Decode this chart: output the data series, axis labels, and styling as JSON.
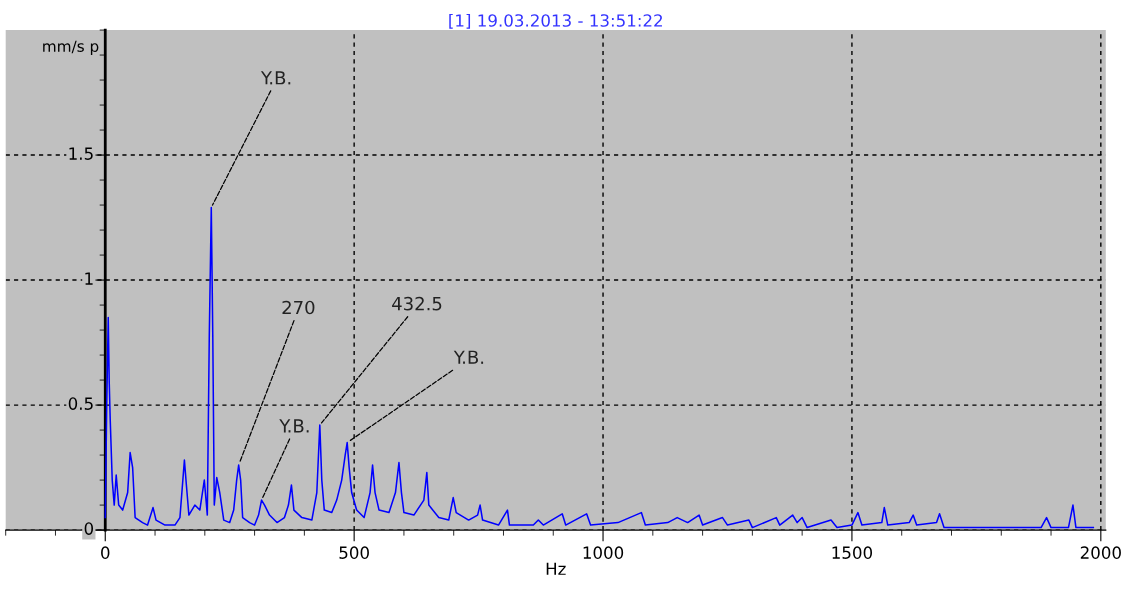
{
  "chart_data": {
    "type": "line",
    "title": "[1] 19.03.2013 - 13:51:22",
    "xlabel": "Hz",
    "ylabel": "mm/s p",
    "xlim": [
      -200,
      2010
    ],
    "ylim": [
      0,
      2
    ],
    "xticks": [
      0,
      500,
      1000,
      1500,
      2000
    ],
    "yticks": [
      0,
      0.5,
      1,
      1.5
    ],
    "grid": true,
    "marker": "none",
    "line_style": "solid",
    "series": [
      {
        "color": "#0000ff",
        "x": [
          0,
          3,
          6,
          8,
          10,
          14,
          18,
          22,
          27,
          35,
          45,
          50,
          55,
          60,
          75,
          85,
          96,
          102,
          120,
          140,
          150,
          159,
          163,
          168,
          180,
          190,
          199,
          205,
          209,
          213,
          216,
          219,
          224,
          230,
          238,
          250,
          258,
          264,
          268,
          272,
          276,
          290,
          300,
          308,
          314,
          320,
          330,
          345,
          360,
          368,
          374,
          379,
          395,
          415,
          425,
          431,
          435,
          440,
          455,
          465,
          475,
          482,
          486,
          490,
          495,
          505,
          520,
          532,
          537,
          542,
          550,
          570,
          583,
          590,
          595,
          600,
          620,
          640,
          646,
          650,
          670,
          690,
          699,
          705,
          730,
          748,
          753,
          758,
          790,
          808,
          812,
          860,
          870,
          880,
          918,
          925,
          967,
          975,
          1030,
          1077,
          1085,
          1130,
          1149,
          1170,
          1193,
          1200,
          1240,
          1250,
          1293,
          1300,
          1348,
          1355,
          1381,
          1390,
          1400,
          1410,
          1458,
          1470,
          1500,
          1512,
          1520,
          1560,
          1565,
          1572,
          1615,
          1623,
          1630,
          1670,
          1676,
          1685,
          1780,
          1880,
          1891,
          1900,
          1935,
          1944,
          1950,
          1985
        ],
        "values": [
          0.05,
          0.5,
          0.85,
          0.59,
          0.44,
          0.2,
          0.1,
          0.22,
          0.1,
          0.08,
          0.15,
          0.31,
          0.25,
          0.05,
          0.03,
          0.02,
          0.09,
          0.04,
          0.02,
          0.02,
          0.05,
          0.28,
          0.18,
          0.06,
          0.1,
          0.08,
          0.2,
          0.06,
          0.78,
          1.29,
          0.78,
          0.1,
          0.21,
          0.15,
          0.04,
          0.03,
          0.08,
          0.2,
          0.26,
          0.2,
          0.05,
          0.03,
          0.02,
          0.06,
          0.12,
          0.1,
          0.06,
          0.03,
          0.05,
          0.1,
          0.18,
          0.08,
          0.05,
          0.04,
          0.15,
          0.42,
          0.2,
          0.08,
          0.07,
          0.12,
          0.2,
          0.3,
          0.35,
          0.25,
          0.15,
          0.08,
          0.05,
          0.15,
          0.26,
          0.15,
          0.08,
          0.07,
          0.15,
          0.27,
          0.15,
          0.07,
          0.06,
          0.12,
          0.23,
          0.1,
          0.05,
          0.04,
          0.13,
          0.07,
          0.04,
          0.06,
          0.1,
          0.04,
          0.02,
          0.08,
          0.02,
          0.02,
          0.04,
          0.02,
          0.065,
          0.02,
          0.065,
          0.02,
          0.03,
          0.07,
          0.02,
          0.03,
          0.05,
          0.03,
          0.06,
          0.02,
          0.05,
          0.02,
          0.04,
          0.01,
          0.05,
          0.02,
          0.06,
          0.03,
          0.05,
          0.01,
          0.04,
          0.01,
          0.02,
          0.07,
          0.02,
          0.03,
          0.09,
          0.02,
          0.03,
          0.06,
          0.02,
          0.03,
          0.065,
          0.01,
          0.01,
          0.01,
          0.05,
          0.01,
          0.01,
          0.1,
          0.01,
          0.01
        ]
      }
    ],
    "annotations": [
      {
        "text": "Y.B.",
        "x": 213,
        "y": 1.29
      },
      {
        "text": "270",
        "x": 268,
        "y": 0.26
      },
      {
        "text": "Y.B.",
        "x": 314,
        "y": 0.12
      },
      {
        "text": "432.5",
        "x": 431,
        "y": 0.42
      },
      {
        "text": "Y.B.",
        "x": 486,
        "y": 0.35
      }
    ]
  }
}
